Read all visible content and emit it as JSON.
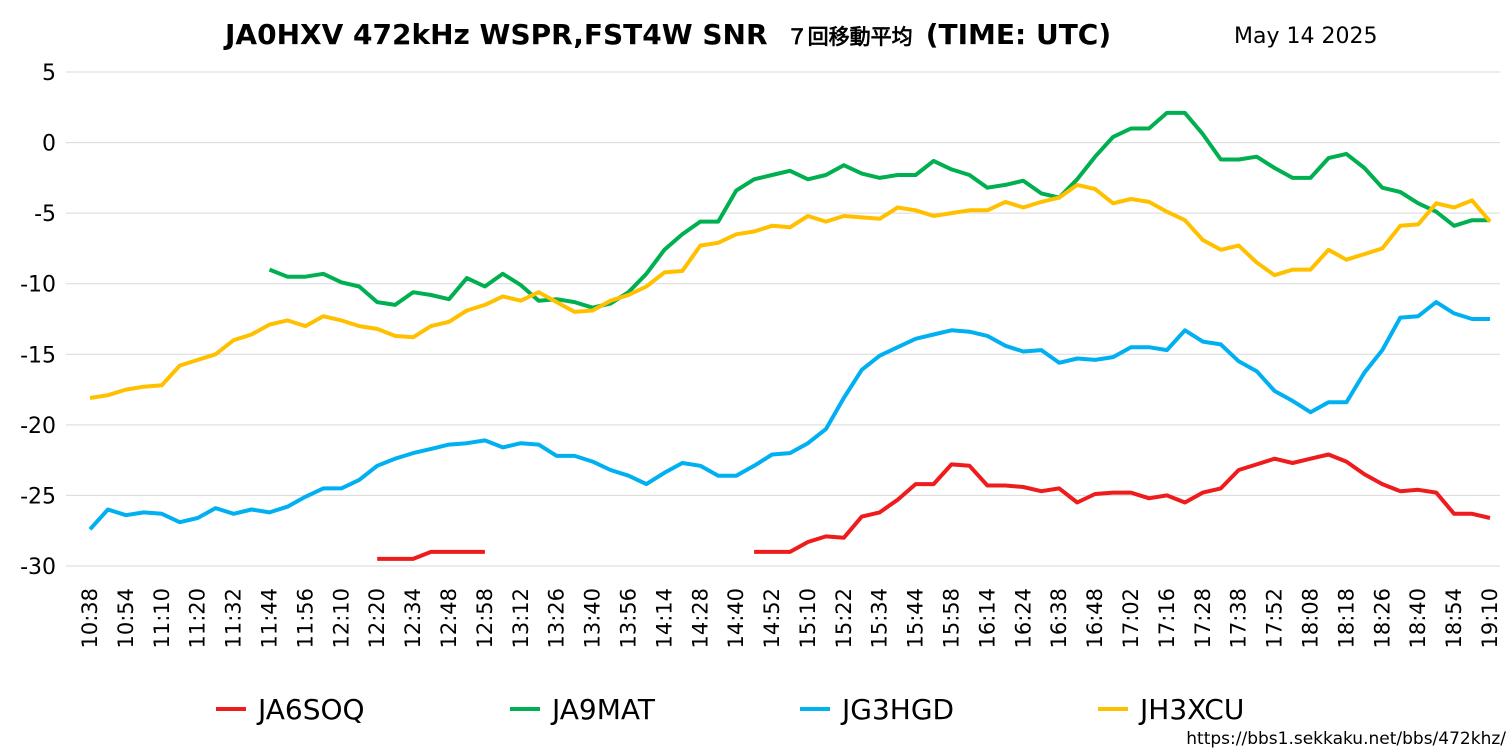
{
  "chart_data": {
    "type": "line",
    "title": {
      "main": "JA0HXV 472kHz WSPR,FST4W SNR",
      "jp": "７回移動平均",
      "tail": "(TIME: UTC)"
    },
    "date": "May 14 2025",
    "footer_url": "https://bbs1.sekkaku.net/bbs/472khz/",
    "xlabel": "",
    "ylabel": "",
    "ylim": [
      -30,
      5
    ],
    "yticks": [
      5,
      0,
      -5,
      -10,
      -15,
      -20,
      -25,
      -30
    ],
    "grid": true,
    "legend_position": "bottom",
    "x": [
      "10:38",
      "10:42",
      "10:54",
      "11:00",
      "11:10",
      "11:14",
      "11:20",
      "11:26",
      "11:32",
      "11:38",
      "11:44",
      "11:50",
      "11:56",
      "12:02",
      "12:10",
      "12:14",
      "12:20",
      "12:28",
      "12:34",
      "12:42",
      "12:48",
      "12:54",
      "12:58",
      "13:04",
      "13:12",
      "13:18",
      "13:26",
      "13:32",
      "13:40",
      "13:46",
      "13:56",
      "14:02",
      "14:14",
      "14:20",
      "14:28",
      "14:34",
      "14:40",
      "14:46",
      "14:52",
      "14:58",
      "15:10",
      "15:14",
      "15:22",
      "15:28",
      "15:34",
      "15:40",
      "15:44",
      "15:50",
      "15:58",
      "16:04",
      "16:14",
      "16:20",
      "16:24",
      "16:30",
      "16:38",
      "16:42",
      "16:48",
      "16:54",
      "17:02",
      "17:08",
      "17:16",
      "17:22",
      "17:28",
      "17:34",
      "17:38",
      "17:44",
      "17:52",
      "17:58",
      "18:08",
      "18:14",
      "18:18",
      "18:22",
      "18:26",
      "18:32",
      "18:40",
      "18:46",
      "18:54",
      "19:00",
      "19:10"
    ],
    "xtick_labels": [
      "10:38",
      "10:54",
      "11:10",
      "11:20",
      "11:32",
      "11:44",
      "11:56",
      "12:10",
      "12:20",
      "12:34",
      "12:48",
      "12:58",
      "13:12",
      "13:26",
      "13:40",
      "13:56",
      "14:14",
      "14:28",
      "14:40",
      "14:52",
      "15:10",
      "15:22",
      "15:34",
      "15:44",
      "15:58",
      "16:14",
      "16:24",
      "16:38",
      "16:48",
      "17:02",
      "17:16",
      "17:28",
      "17:38",
      "17:52",
      "18:08",
      "18:18",
      "18:26",
      "18:40",
      "18:54",
      "19:10"
    ],
    "series": [
      {
        "name": "JA6SOQ",
        "color": "#EE1C1C",
        "values": [
          null,
          null,
          null,
          null,
          null,
          null,
          null,
          null,
          null,
          null,
          null,
          null,
          null,
          null,
          null,
          null,
          -29.5,
          -29.5,
          -29.5,
          -29,
          -29,
          -29,
          -29,
          null,
          null,
          null,
          null,
          null,
          null,
          null,
          null,
          null,
          null,
          null,
          null,
          null,
          null,
          -29,
          -29,
          -29,
          -28.3,
          -27.9,
          -28,
          -26.5,
          -26.2,
          -25.3,
          -24.2,
          -24.2,
          -22.8,
          -22.9,
          -24.3,
          -24.3,
          -24.4,
          -24.7,
          -24.5,
          -25.5,
          -24.9,
          -24.8,
          -24.8,
          -25.2,
          -25,
          -25.5,
          -24.8,
          -24.5,
          -23.2,
          -22.8,
          -22.4,
          -22.7,
          -22.4,
          -22.1,
          -22.6,
          -23.5,
          -24.2,
          -24.7,
          -24.6,
          -24.8,
          -26.3,
          -26.3,
          -26.6
        ]
      },
      {
        "name": "JA9MAT",
        "color": "#00B050",
        "values": [
          null,
          null,
          null,
          null,
          null,
          null,
          null,
          null,
          null,
          null,
          -9,
          -9.5,
          -9.5,
          -9.3,
          -9.9,
          -10.2,
          -11.3,
          -11.5,
          -10.6,
          -10.8,
          -11.1,
          -9.6,
          -10.2,
          -9.3,
          -10.1,
          -11.2,
          -11.1,
          -11.3,
          -11.7,
          -11.4,
          -10.6,
          -9.3,
          -7.6,
          -6.5,
          -5.6,
          -5.6,
          -3.4,
          -2.6,
          -2.3,
          -2,
          -2.6,
          -2.3,
          -1.6,
          -2.2,
          -2.5,
          -2.3,
          -2.3,
          -1.3,
          -1.9,
          -2.3,
          -3.2,
          -3,
          -2.7,
          -3.6,
          -3.9,
          -2.6,
          -1,
          0.4,
          1,
          1,
          2.1,
          2.1,
          0.6,
          -1.2,
          -1.2,
          -1,
          -1.8,
          -2.5,
          -2.5,
          -1.1,
          -0.8,
          -1.8,
          -3.2,
          -3.5,
          -4.3,
          -4.9,
          -5.9,
          -5.5,
          -5.5
        ]
      },
      {
        "name": "JG3HGD",
        "color": "#00B0F0",
        "values": [
          -27.4,
          -26,
          -26.4,
          -26.2,
          -26.3,
          -26.9,
          -26.6,
          -25.9,
          -26.3,
          -26,
          -26.2,
          -25.8,
          -25.1,
          -24.5,
          -24.5,
          -23.9,
          -22.9,
          -22.4,
          -22,
          -21.7,
          -21.4,
          -21.3,
          -21.1,
          -21.6,
          -21.3,
          -21.4,
          -22.2,
          -22.2,
          -22.6,
          -23.2,
          -23.6,
          -24.2,
          -23.4,
          -22.7,
          -22.9,
          -23.6,
          -23.6,
          -22.9,
          -22.1,
          -22,
          -21.3,
          -20.3,
          -18.1,
          -16.1,
          -15.1,
          -14.5,
          -13.9,
          -13.6,
          -13.3,
          -13.4,
          -13.7,
          -14.4,
          -14.8,
          -14.7,
          -15.6,
          -15.3,
          -15.4,
          -15.2,
          -14.5,
          -14.5,
          -14.7,
          -13.3,
          -14.1,
          -14.3,
          -15.5,
          -16.2,
          -17.6,
          -18.3,
          -19.1,
          -18.4,
          -18.4,
          -16.3,
          -14.7,
          -12.4,
          -12.3,
          -11.3,
          -12.1,
          -12.5,
          -12.5
        ]
      },
      {
        "name": "JH3XCU",
        "color": "#FFC000",
        "values": [
          -18.1,
          -17.9,
          -17.5,
          -17.3,
          -17.2,
          -15.8,
          -15.4,
          -15,
          -14,
          -13.6,
          -12.9,
          -12.6,
          -13,
          -12.3,
          -12.6,
          -13,
          -13.2,
          -13.7,
          -13.8,
          -13,
          -12.7,
          -11.9,
          -11.5,
          -10.9,
          -11.2,
          -10.6,
          -11.3,
          -12,
          -11.9,
          -11.2,
          -10.8,
          -10.2,
          -9.2,
          -9.1,
          -7.3,
          -7.1,
          -6.5,
          -6.3,
          -5.9,
          -6,
          -5.2,
          -5.6,
          -5.2,
          -5.3,
          -5.4,
          -4.6,
          -4.8,
          -5.2,
          -5,
          -4.8,
          -4.8,
          -4.2,
          -4.6,
          -4.2,
          -3.9,
          -3,
          -3.3,
          -4.3,
          -4,
          -4.2,
          -4.9,
          -5.5,
          -6.9,
          -7.6,
          -7.3,
          -8.5,
          -9.4,
          -9,
          -9,
          -7.6,
          -8.3,
          -7.9,
          -7.5,
          -5.9,
          -5.8,
          -4.3,
          -4.6,
          -4.1,
          -5.6
        ]
      }
    ]
  }
}
